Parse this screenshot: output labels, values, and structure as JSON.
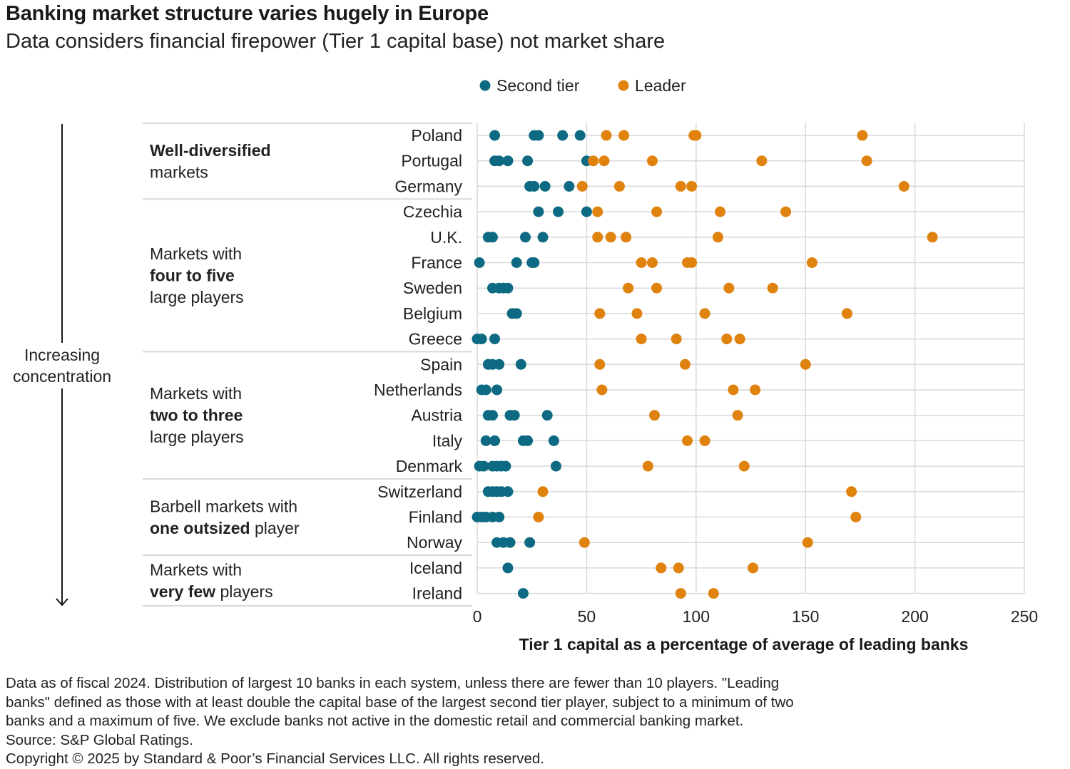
{
  "header": {
    "title": "Banking market structure varies hugely in Europe",
    "subtitle": "Data considers financial firepower (Tier 1 capital base) not market share"
  },
  "concentration_label": [
    "Increasing",
    "concentration"
  ],
  "groups": [
    {
      "lines": [
        [
          {
            "t": "Well-diversified",
            "b": true
          }
        ],
        [
          {
            "t": "markets",
            "b": false
          }
        ]
      ],
      "first_row": 0,
      "last_row": 2
    },
    {
      "lines": [
        [
          {
            "t": "Markets with",
            "b": false
          }
        ],
        [
          {
            "t": "four to five",
            "b": true
          }
        ],
        [
          {
            "t": "large players",
            "b": false
          }
        ]
      ],
      "first_row": 3,
      "last_row": 8
    },
    {
      "lines": [
        [
          {
            "t": "Markets with",
            "b": false
          }
        ],
        [
          {
            "t": "two to three",
            "b": true
          }
        ],
        [
          {
            "t": "large players",
            "b": false
          }
        ]
      ],
      "first_row": 9,
      "last_row": 13
    },
    {
      "lines": [
        [
          {
            "t": "Barbell markets with",
            "b": false
          }
        ],
        [
          {
            "t": "one outsized",
            "b": true
          },
          {
            "t": " player",
            "b": false
          }
        ]
      ],
      "first_row": 14,
      "last_row": 16
    },
    {
      "lines": [
        [
          {
            "t": "Markets with",
            "b": false
          }
        ],
        [
          {
            "t": "very few",
            "b": true
          },
          {
            "t": " players",
            "b": false
          }
        ]
      ],
      "first_row": 17,
      "last_row": 18
    }
  ],
  "footnote": [
    "Data as of fiscal 2024. Distribution of largest 10 banks in each system, unless there are fewer than 10 players. \"Leading",
    "banks\" defined as those with at least double the capital base of the largest second tier player, subject to a minimum of two",
    "banks and a maximum of five. We exclude banks not active in the domestic retail and commercial banking market.",
    "Source: S&P Global Ratings.",
    "Copyright © 2025 by Standard & Poor’s Financial Services LLC. All rights reserved."
  ],
  "colors": {
    "second_tier": "#0e6a82",
    "leader": "#e0820e",
    "grid": "#d9d9d9"
  },
  "chart_data": {
    "type": "scatter",
    "orientation": "horizontal-dot-plot",
    "xlabel": "Tier 1 capital as a percentage of average of leading banks",
    "xlim": [
      0,
      250
    ],
    "xticks": [
      0,
      50,
      100,
      150,
      200,
      250
    ],
    "grid": true,
    "legend": {
      "position": "top",
      "entries": [
        "Second tier",
        "Leader"
      ]
    },
    "series": [
      {
        "name": "Second tier",
        "color": "#0e6a82"
      },
      {
        "name": "Leader",
        "color": "#e0820e"
      }
    ],
    "categories": [
      "Poland",
      "Portugal",
      "Germany",
      "Czechia",
      "U.K.",
      "France",
      "Sweden",
      "Belgium",
      "Greece",
      "Spain",
      "Netherlands",
      "Austria",
      "Italy",
      "Denmark",
      "Switzerland",
      "Finland",
      "Norway",
      "Iceland",
      "Ireland"
    ],
    "rows": [
      {
        "country": "Poland",
        "second_tier": [
          8,
          26,
          28,
          39,
          47
        ],
        "leader": [
          59,
          67,
          99,
          100,
          176
        ]
      },
      {
        "country": "Portugal",
        "second_tier": [
          8,
          10,
          14,
          23,
          50
        ],
        "leader": [
          53,
          58,
          80,
          130,
          178
        ]
      },
      {
        "country": "Germany",
        "second_tier": [
          24,
          26,
          31,
          42
        ],
        "leader": [
          48,
          65,
          93,
          98,
          195
        ]
      },
      {
        "country": "Czechia",
        "second_tier": [
          28,
          37,
          50
        ],
        "leader": [
          55,
          82,
          111,
          141
        ]
      },
      {
        "country": "U.K.",
        "second_tier": [
          5,
          7,
          22,
          30
        ],
        "leader": [
          55,
          61,
          68,
          110,
          208
        ]
      },
      {
        "country": "France",
        "second_tier": [
          1,
          18,
          25,
          26
        ],
        "leader": [
          75,
          80,
          96,
          98,
          153
        ]
      },
      {
        "country": "Sweden",
        "second_tier": [
          7,
          10,
          12,
          14
        ],
        "leader": [
          69,
          82,
          115,
          135
        ]
      },
      {
        "country": "Belgium",
        "second_tier": [
          16,
          18
        ],
        "leader": [
          56,
          73,
          104,
          169
        ]
      },
      {
        "country": "Greece",
        "second_tier": [
          0,
          2,
          8
        ],
        "leader": [
          75,
          91,
          114,
          120
        ]
      },
      {
        "country": "Spain",
        "second_tier": [
          5,
          7,
          10,
          20
        ],
        "leader": [
          56,
          95,
          150
        ]
      },
      {
        "country": "Netherlands",
        "second_tier": [
          2,
          4,
          9
        ],
        "leader": [
          57,
          117,
          127
        ]
      },
      {
        "country": "Austria",
        "second_tier": [
          5,
          7,
          15,
          17,
          32
        ],
        "leader": [
          81,
          119
        ]
      },
      {
        "country": "Italy",
        "second_tier": [
          4,
          8,
          21,
          23,
          35
        ],
        "leader": [
          96,
          104
        ]
      },
      {
        "country": "Denmark",
        "second_tier": [
          1,
          3,
          7,
          9,
          11,
          13,
          36
        ],
        "leader": [
          78,
          122
        ]
      },
      {
        "country": "Switzerland",
        "second_tier": [
          5,
          7,
          9,
          11,
          14
        ],
        "leader": [
          30,
          171
        ]
      },
      {
        "country": "Finland",
        "second_tier": [
          0,
          2,
          4,
          7,
          10
        ],
        "leader": [
          28,
          173
        ]
      },
      {
        "country": "Norway",
        "second_tier": [
          9,
          12,
          15,
          24
        ],
        "leader": [
          49,
          151
        ]
      },
      {
        "country": "Iceland",
        "second_tier": [
          14
        ],
        "leader": [
          84,
          92,
          126
        ]
      },
      {
        "country": "Ireland",
        "second_tier": [
          21
        ],
        "leader": [
          93,
          108
        ]
      }
    ]
  }
}
